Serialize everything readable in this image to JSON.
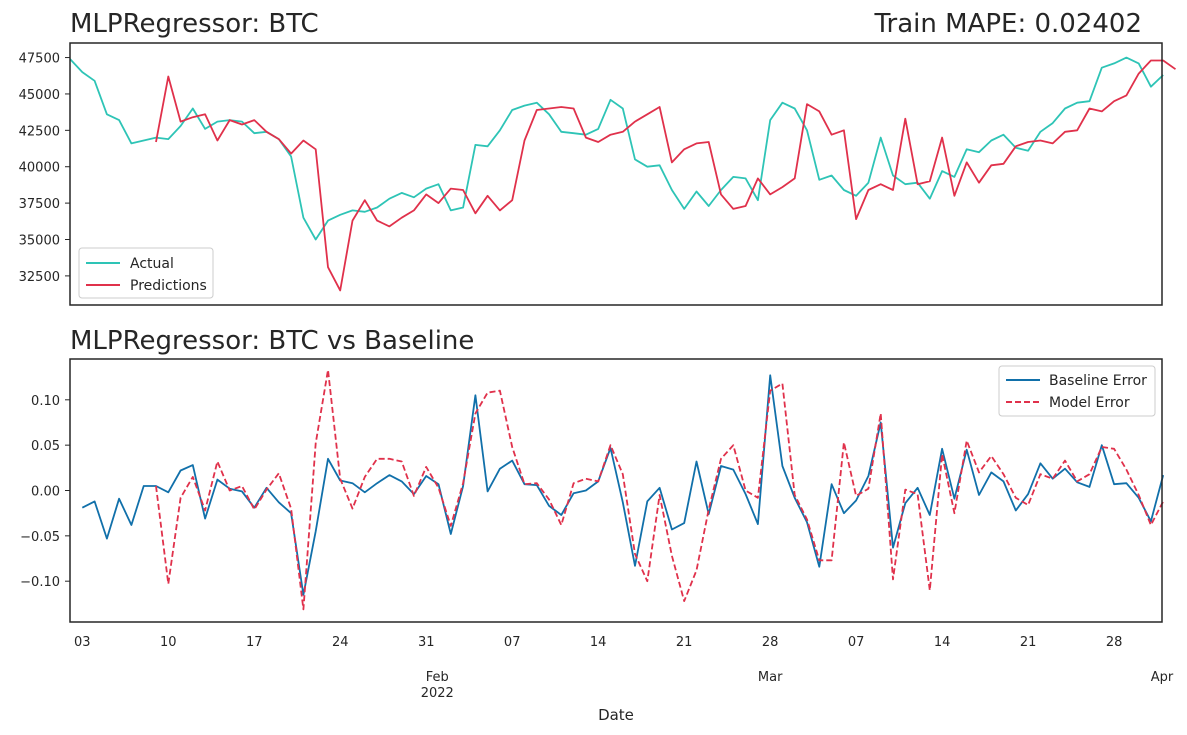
{
  "colors": {
    "actual": "#2ec4b6",
    "predictions": "#e0314b",
    "baseline_error": "#1170aa",
    "model_error": "#e0314b",
    "frame": "#262626"
  },
  "chart_data": [
    {
      "type": "line",
      "title": "MLPRegressor: BTC",
      "subtitle": "Train MAPE: 0.02402",
      "xlabel": "",
      "ylabel": "",
      "ylim": [
        30500,
        48500
      ],
      "yticks": [
        32500,
        35000,
        37500,
        40000,
        42500,
        45000,
        47500
      ],
      "ytick_labels": [
        "32500",
        "35000",
        "37500",
        "40000",
        "42500",
        "45000",
        "47500"
      ],
      "legend": {
        "position": "lower-left",
        "entries": [
          "Actual",
          "Predictions"
        ]
      },
      "x_start": "2022-01-02",
      "series": [
        {
          "name": "Actual",
          "x_offset": 0,
          "style": "solid",
          "values": [
            47400,
            46500,
            45900,
            43600,
            43200,
            41600,
            41800,
            42000,
            41900,
            42800,
            44000,
            42600,
            43100,
            43200,
            43100,
            42300,
            42400,
            41900,
            40700,
            36500,
            35000,
            36300,
            36700,
            37000,
            36900,
            37200,
            37800,
            38200,
            37900,
            38500,
            38800,
            37000,
            37200,
            41500,
            41400,
            42500,
            43900,
            44200,
            44400,
            43600,
            42400,
            42300,
            42200,
            42600,
            44600,
            44000,
            40500,
            40000,
            40100,
            38400,
            37100,
            38300,
            37300,
            38400,
            39300,
            39200,
            37700,
            43200,
            44400,
            44000,
            42500,
            39100,
            39400,
            38400,
            38000,
            38900,
            42000,
            39400,
            38800,
            38900,
            37800,
            39700,
            39300,
            41200,
            41000,
            41800,
            42200,
            41300,
            41100,
            42400,
            43000,
            44000,
            44400,
            44500,
            46800,
            47100,
            47500,
            47100,
            45500,
            46300
          ]
        },
        {
          "name": "Predictions",
          "x_offset": 7,
          "style": "solid",
          "values": [
            41700,
            46200,
            43100,
            43400,
            43600,
            41800,
            43200,
            42900,
            43200,
            42400,
            41900,
            40900,
            41800,
            41200,
            33100,
            31500,
            36300,
            37700,
            36300,
            35900,
            36500,
            37000,
            38100,
            37500,
            38500,
            38400,
            36800,
            38000,
            37000,
            37700,
            41800,
            43900,
            44000,
            44100,
            44000,
            42000,
            41700,
            42200,
            42400,
            43100,
            43600,
            44100,
            40300,
            41200,
            41600,
            41700,
            38100,
            37100,
            37300,
            39200,
            38100,
            38600,
            39200,
            44300,
            43800,
            42200,
            42500,
            36400,
            38400,
            38800,
            38400,
            43300,
            38800,
            39000,
            42000,
            38000,
            40300,
            38900,
            40100,
            40200,
            41400,
            41700,
            41800,
            41600,
            42400,
            42500,
            44000,
            43800,
            44500,
            44900,
            46400,
            47300,
            47300,
            46700
          ]
        }
      ]
    },
    {
      "type": "line",
      "title": "MLPRegressor: BTC vs Baseline",
      "xlabel": "Date",
      "ylabel": "",
      "ylim": [
        -0.145,
        0.145
      ],
      "yticks": [
        -0.1,
        -0.05,
        0.0,
        0.05,
        0.1
      ],
      "ytick_labels": [
        "−0.10",
        "−0.05",
        "0.00",
        "0.05",
        "0.10"
      ],
      "legend": {
        "position": "top-right",
        "entries": [
          "Baseline Error",
          "Model Error"
        ]
      },
      "x_ticks": [
        {
          "day": 1,
          "label": "03",
          "sub": ""
        },
        {
          "day": 8,
          "label": "10",
          "sub": ""
        },
        {
          "day": 15,
          "label": "17",
          "sub": ""
        },
        {
          "day": 22,
          "label": "24",
          "sub": ""
        },
        {
          "day": 29,
          "label": "31",
          "sub": ""
        },
        {
          "day": 29.9,
          "label": "",
          "sub": "Feb"
        },
        {
          "day": 36,
          "label": "07",
          "sub": ""
        },
        {
          "day": 43,
          "label": "14",
          "sub": ""
        },
        {
          "day": 50,
          "label": "21",
          "sub": ""
        },
        {
          "day": 57,
          "label": "28",
          "sub": "Mar"
        },
        {
          "day": 64,
          "label": "07",
          "sub": ""
        },
        {
          "day": 71,
          "label": "14",
          "sub": ""
        },
        {
          "day": 78,
          "label": "21",
          "sub": ""
        },
        {
          "day": 85,
          "label": "28",
          "sub": ""
        },
        {
          "day": 88.9,
          "label": "",
          "sub": "Apr"
        }
      ],
      "year_label": "2022",
      "series": [
        {
          "name": "Baseline Error",
          "x_offset": 1,
          "style": "solid",
          "values": [
            -0.019,
            -0.012,
            -0.053,
            -0.009,
            -0.038,
            0.005,
            0.005,
            -0.002,
            0.022,
            0.028,
            -0.031,
            0.012,
            0.002,
            -0.001,
            -0.019,
            0.003,
            -0.013,
            -0.025,
            -0.115,
            -0.045,
            0.035,
            0.011,
            0.008,
            -0.002,
            0.008,
            0.017,
            0.01,
            -0.004,
            0.016,
            0.007,
            -0.048,
            0.005,
            0.105,
            -0.001,
            0.024,
            0.033,
            0.007,
            0.006,
            -0.017,
            -0.027,
            -0.003,
            0.0,
            0.01,
            0.047,
            -0.013,
            -0.083,
            -0.012,
            0.003,
            -0.043,
            -0.036,
            0.032,
            -0.026,
            0.027,
            0.023,
            -0.004,
            -0.037,
            0.127,
            0.027,
            -0.008,
            -0.035,
            -0.084,
            0.007,
            -0.025,
            -0.011,
            0.016,
            0.075,
            -0.063,
            -0.014,
            0.003,
            -0.027,
            0.046,
            -0.009,
            0.045,
            -0.005,
            0.02,
            0.01,
            -0.022,
            -0.004,
            0.03,
            0.013,
            0.024,
            0.009,
            0.004,
            0.05,
            0.007,
            0.008,
            -0.008,
            -0.034,
            0.017
          ]
        },
        {
          "name": "Model Error",
          "x_offset": 7,
          "style": "dashed",
          "values": [
            0.005,
            -0.103,
            -0.008,
            0.015,
            -0.022,
            0.032,
            0.0,
            0.005,
            -0.021,
            0.001,
            0.019,
            -0.02,
            -0.131,
            0.052,
            0.133,
            0.013,
            -0.02,
            0.015,
            0.035,
            0.035,
            0.032,
            -0.006,
            0.026,
            0.003,
            -0.039,
            0.008,
            0.085,
            0.108,
            0.11,
            0.048,
            0.007,
            0.008,
            -0.01,
            -0.038,
            0.008,
            0.013,
            0.01,
            0.05,
            0.018,
            -0.07,
            -0.1,
            -0.005,
            -0.072,
            -0.122,
            -0.088,
            -0.021,
            0.035,
            0.05,
            0.0,
            -0.008,
            0.11,
            0.118,
            -0.005,
            -0.032,
            -0.077,
            -0.077,
            0.053,
            -0.006,
            0.002,
            0.085,
            -0.098,
            0.001,
            -0.004,
            -0.11,
            0.04,
            -0.025,
            0.055,
            0.02,
            0.038,
            0.018,
            -0.008,
            -0.016,
            0.018,
            0.013,
            0.033,
            0.01,
            0.018,
            0.048,
            0.046,
            0.023,
            -0.005,
            -0.038,
            -0.012
          ]
        }
      ]
    }
  ]
}
